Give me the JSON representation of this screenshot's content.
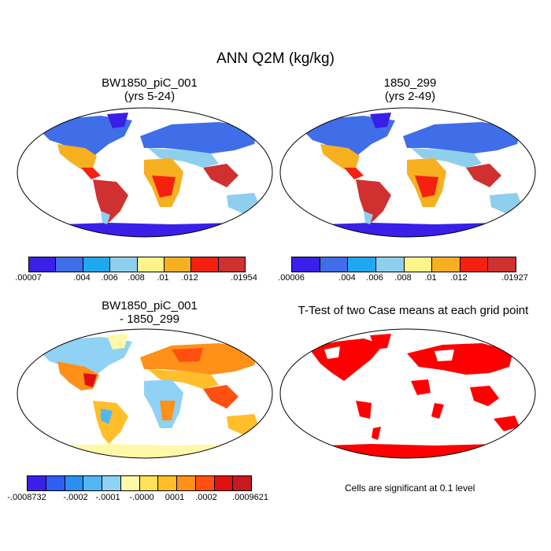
{
  "title": "ANN Q2M (kg/kg)",
  "panels": {
    "p1": {
      "line1": "BW1850_piC_001",
      "line2": "(yrs 5-24)"
    },
    "p2": {
      "line1": "1850_299",
      "line2": "(yrs 2-49)"
    },
    "p3": {
      "line1": "BW1850_piC_001",
      "line2": "- 1850_299"
    },
    "p4": {
      "line1": "T-Test of two Case means at each grid point",
      "note": "Cells are significant at 0.1 level"
    }
  },
  "colorbars": {
    "cb1": {
      "colors": [
        "#3a1fe8",
        "#3f6ee8",
        "#1fa8f0",
        "#8fcfee",
        "#fff48a",
        "#f7b020",
        "#f52010",
        "#d03030"
      ],
      "labels": [
        ".00007",
        ".004",
        ".006",
        ".008",
        ".01",
        ".012",
        ".01954"
      ]
    },
    "cb2": {
      "colors": [
        "#3a1fe8",
        "#3f6ee8",
        "#1fa8f0",
        "#8fcfee",
        "#fff48a",
        "#f7b020",
        "#f52010",
        "#d03030"
      ],
      "labels": [
        ".00006",
        ".004",
        ".006",
        ".008",
        ".01",
        ".012",
        ".01927"
      ]
    },
    "cb3": {
      "colors": [
        "#3a1fe8",
        "#2f5ef5",
        "#2b8ef0",
        "#52b6f2",
        "#8fd2f5",
        "#fff8a8",
        "#ffe25a",
        "#ffbe2a",
        "#ff9018",
        "#ff5010",
        "#e01010",
        "#c81820"
      ],
      "labels": [
        "-.0008732",
        "-.0002",
        "-.0001",
        "-.0000",
        "0001",
        ".0002",
        ".0009621"
      ]
    }
  }
}
